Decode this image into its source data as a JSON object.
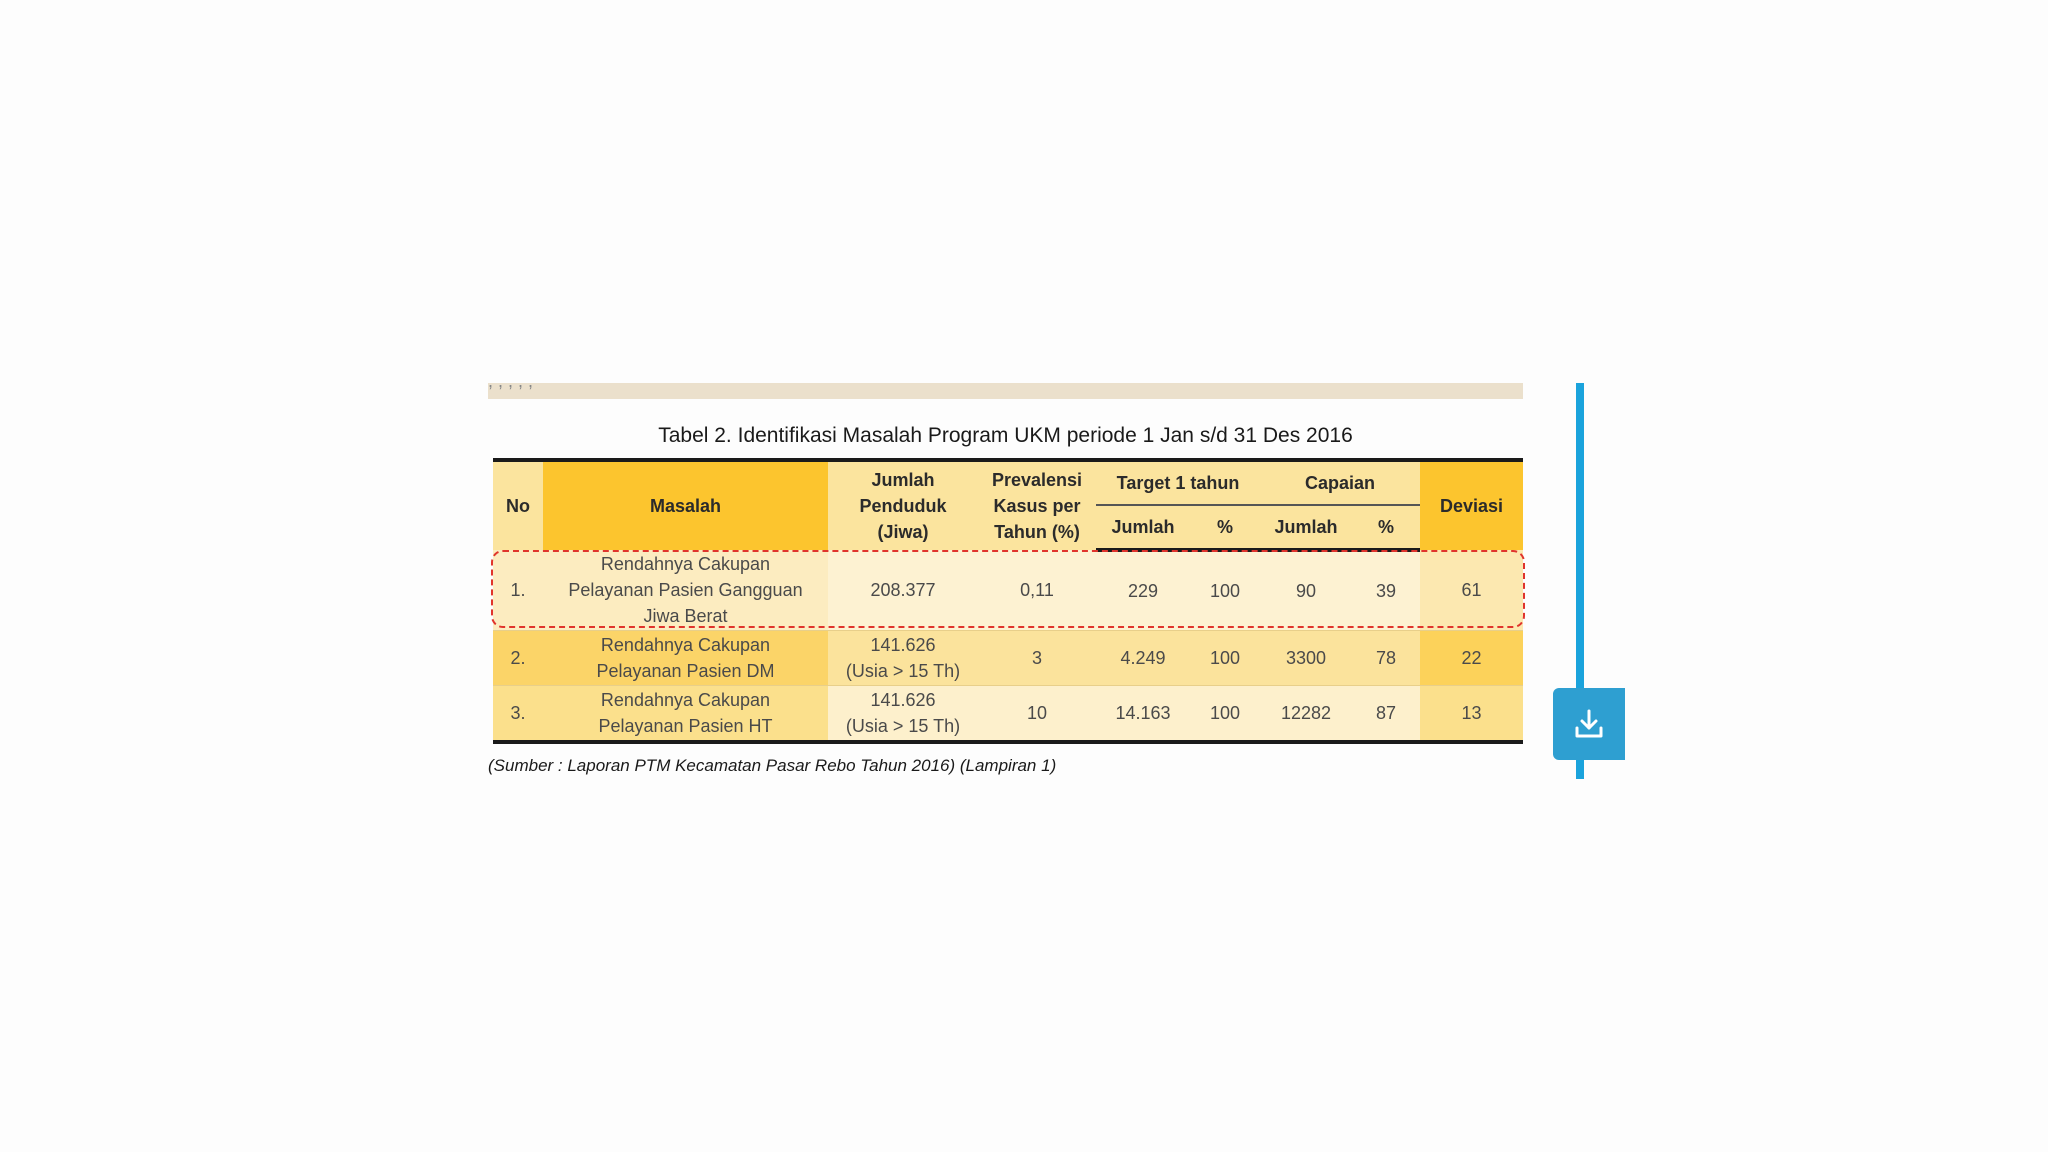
{
  "document": {
    "top_strip_text": ", , , , ,",
    "table_title": "Tabel 2. Identifikasi Masalah Program UKM periode 1 Jan s/d 31 Des 2016",
    "source_note": "(Sumber : Laporan PTM Kecamatan Pasar Rebo Tahun 2016) (Lampiran 1)"
  },
  "table": {
    "headers": {
      "no": "No",
      "masalah": "Masalah",
      "jumlah_penduduk": [
        "Jumlah",
        "Penduduk",
        "(Jiwa)"
      ],
      "prevalensi": [
        "Prevalensi",
        "Kasus per",
        "Tahun (%)"
      ],
      "target_group": "Target 1 tahun",
      "capaian_group": "Capaian",
      "deviasi": "Deviasi",
      "sub_jumlah_target": "Jumlah",
      "sub_pct_target": "%",
      "sub_jumlah_capaian": "Jumlah",
      "sub_pct_capaian": "%"
    },
    "rows": [
      {
        "no": "1.",
        "masalah": [
          "Rendahnya Cakupan",
          "Pelayanan Pasien  Gangguan",
          "Jiwa Berat"
        ],
        "jumlah_penduduk": [
          "208.377"
        ],
        "prevalensi": "0,11",
        "target_jumlah": "229",
        "target_pct": "100",
        "capaian_jumlah": "90",
        "capaian_pct": "39",
        "deviasi": "61"
      },
      {
        "no": "2.",
        "masalah": [
          "Rendahnya Cakupan",
          "Pelayanan Pasien DM"
        ],
        "jumlah_penduduk": [
          "141.626",
          "(Usia > 15 Th)"
        ],
        "prevalensi": "3",
        "target_jumlah": "4.249",
        "target_pct": "100",
        "capaian_jumlah": "3300",
        "capaian_pct": "78",
        "deviasi": "22"
      },
      {
        "no": "3.",
        "masalah": [
          "Rendahnya Cakupan",
          "Pelayanan Pasien HT"
        ],
        "jumlah_penduduk": [
          "141.626",
          "(Usia > 15 Th)"
        ],
        "prevalensi": "10",
        "target_jumlah": "14.163",
        "target_pct": "100",
        "capaian_jumlah": "12282",
        "capaian_pct": "87",
        "deviasi": "13"
      }
    ]
  },
  "controls": {
    "download_icon": "download-icon",
    "accent_color": "#2e9fd1",
    "scrollbar_color": "#1ba3dc",
    "highlight_color": "#e0342c"
  }
}
